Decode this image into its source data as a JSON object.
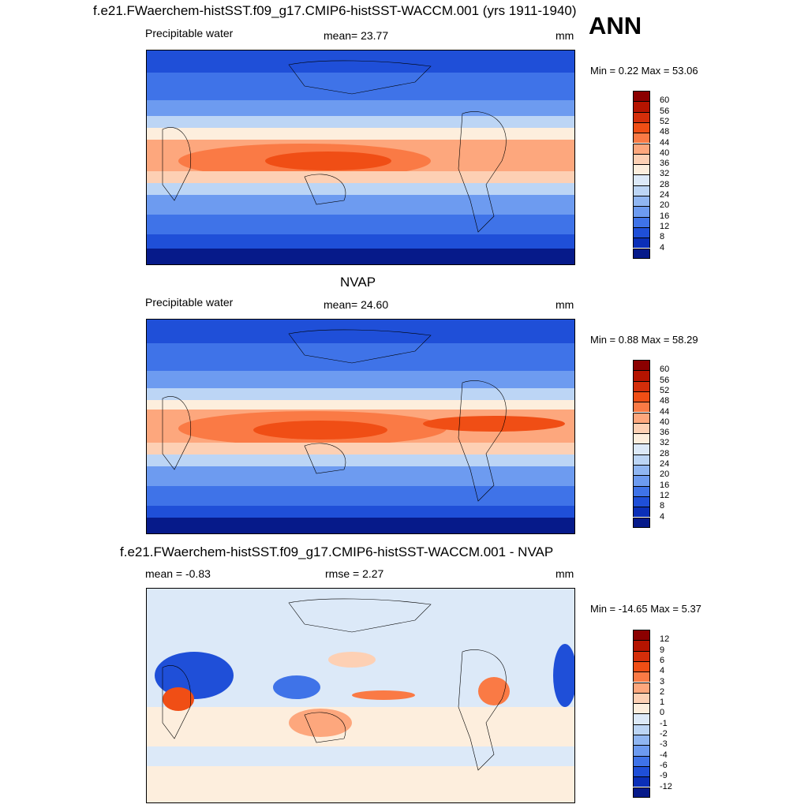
{
  "header": {
    "main_title": "f.e21.FWaerchem-histSST.f09_g17.CMIP6-histSST-WACCM.001 (yrs 1911-1940)",
    "season": "ANN"
  },
  "panels": [
    {
      "id": "model",
      "center_title": "",
      "left_label": "Precipitable water",
      "center_label": "mean=  23.77",
      "right_label": "mm",
      "minmax": "Min =   0.22 Max =  53.06",
      "colorbar": {
        "colors": [
          "#8b0000",
          "#b51400",
          "#d42e0a",
          "#f04e15",
          "#fa7a45",
          "#fda77d",
          "#fdd0b4",
          "#fdeedd",
          "#dce9f8",
          "#bcd5f5",
          "#90b6f2",
          "#6d9bf0",
          "#3f73e8",
          "#1f4fd8",
          "#0b2fb8",
          "#061a8a"
        ],
        "labels": [
          "60",
          "56",
          "52",
          "48",
          "44",
          "40",
          "36",
          "32",
          "28",
          "24",
          "20",
          "16",
          "12",
          "8",
          "4"
        ]
      }
    },
    {
      "id": "obs",
      "center_title": "NVAP",
      "left_label": "Precipitable water",
      "center_label": "mean=  24.60",
      "right_label": "mm",
      "minmax": "Min =   0.88 Max =  58.29",
      "colorbar": {
        "colors": [
          "#8b0000",
          "#b51400",
          "#d42e0a",
          "#f04e15",
          "#fa7a45",
          "#fda77d",
          "#fdd0b4",
          "#fdeedd",
          "#dce9f8",
          "#bcd5f5",
          "#90b6f2",
          "#6d9bf0",
          "#3f73e8",
          "#1f4fd8",
          "#0b2fb8",
          "#061a8a"
        ],
        "labels": [
          "60",
          "56",
          "52",
          "48",
          "44",
          "40",
          "36",
          "32",
          "28",
          "24",
          "20",
          "16",
          "12",
          "8",
          "4"
        ]
      }
    },
    {
      "id": "diff",
      "center_title": "f.e21.FWaerchem-histSST.f09_g17.CMIP6-histSST-WACCM.001 - NVAP",
      "left_label": "mean =  -0.83",
      "center_label": "rmse =   2.27",
      "right_label": "mm",
      "minmax": "Min = -14.65 Max =   5.37",
      "colorbar": {
        "colors": [
          "#8b0000",
          "#b51400",
          "#d42e0a",
          "#f04e15",
          "#fa7a45",
          "#fda77d",
          "#fdd0b4",
          "#fdeedd",
          "#dce9f8",
          "#bcd5f5",
          "#90b6f2",
          "#6d9bf0",
          "#3f73e8",
          "#1f4fd8",
          "#0b2fb8",
          "#061a8a"
        ],
        "labels": [
          "12",
          "9",
          "6",
          "4",
          "3",
          "2",
          "1",
          "0",
          "-1",
          "-2",
          "-3",
          "-4",
          "-6",
          "-9",
          "-12"
        ]
      }
    }
  ]
}
